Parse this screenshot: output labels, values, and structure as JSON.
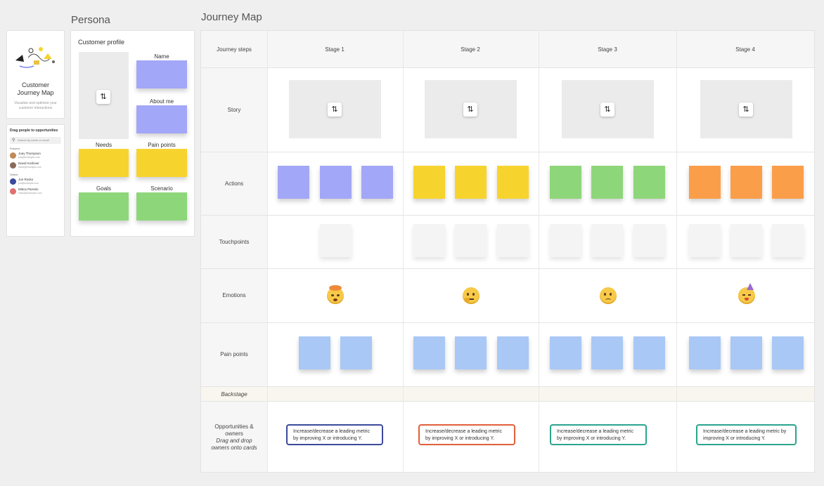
{
  "persona": {
    "section_title": "Persona",
    "cover": {
      "title_line1": "Customer",
      "title_line2": "Journey Map",
      "subtitle_line1": "Visualize and optimize your",
      "subtitle_line2": "customer interactions"
    },
    "people_panel": {
      "title": "Drag people to opportunities",
      "search_placeholder": "Search by name or email",
      "groups": [
        {
          "label": "Present",
          "people": [
            {
              "name": "Joey Thompson",
              "email": "joey@example.com"
            },
            {
              "name": "David Krafover",
              "email": "david@example.com"
            }
          ]
        },
        {
          "label": "Online",
          "people": [
            {
              "name": "Jon Rusko",
              "email": "jon@example.com"
            },
            {
              "name": "Mitica Parnelo",
              "email": "mitica@example.com"
            }
          ]
        }
      ]
    },
    "profile": {
      "title": "Customer profile",
      "fields": {
        "name": "Name",
        "about": "About me",
        "needs": "Needs",
        "pain_points": "Pain points",
        "goals": "Goals",
        "scenario": "Scenario"
      }
    }
  },
  "journey": {
    "section_title": "Journey Map",
    "header_label": "Journey steps",
    "stages": [
      "Stage 1",
      "Stage 2",
      "Stage 3",
      "Stage 4"
    ],
    "rows": {
      "story": "Story",
      "actions": "Actions",
      "touchpoints": "Touchpoints",
      "emotions": "Emotions",
      "pain_points": "Pain points",
      "backstage": "Backstage"
    },
    "opportunities_label": {
      "line1": "Opportunities &",
      "line2": "owners",
      "line3": "Drag and drop",
      "line4": "owners onto cards"
    },
    "opportunity_text": "Increase/decrease a leading metric by improving X or introducing Y.",
    "colors": {
      "stage1_sticky": "#a3a7f7",
      "stage2_sticky": "#f7d32e",
      "stage3_sticky": "#8ed67a",
      "stage4_sticky": "#fb9e4a",
      "pain_sticky": "#a9c8f5",
      "touch_sticky": "#f4f4f4",
      "opp_border_1": "#3b4a9c",
      "opp_border_2": "#e0603a",
      "opp_border_3": "#2aa58e",
      "opp_border_4": "#2aa58e"
    },
    "emotion_icons": [
      "exploding-head-emoji-icon",
      "thinking-face-emoji-icon",
      "confused-face-emoji-icon",
      "party-face-emoji-icon"
    ]
  }
}
